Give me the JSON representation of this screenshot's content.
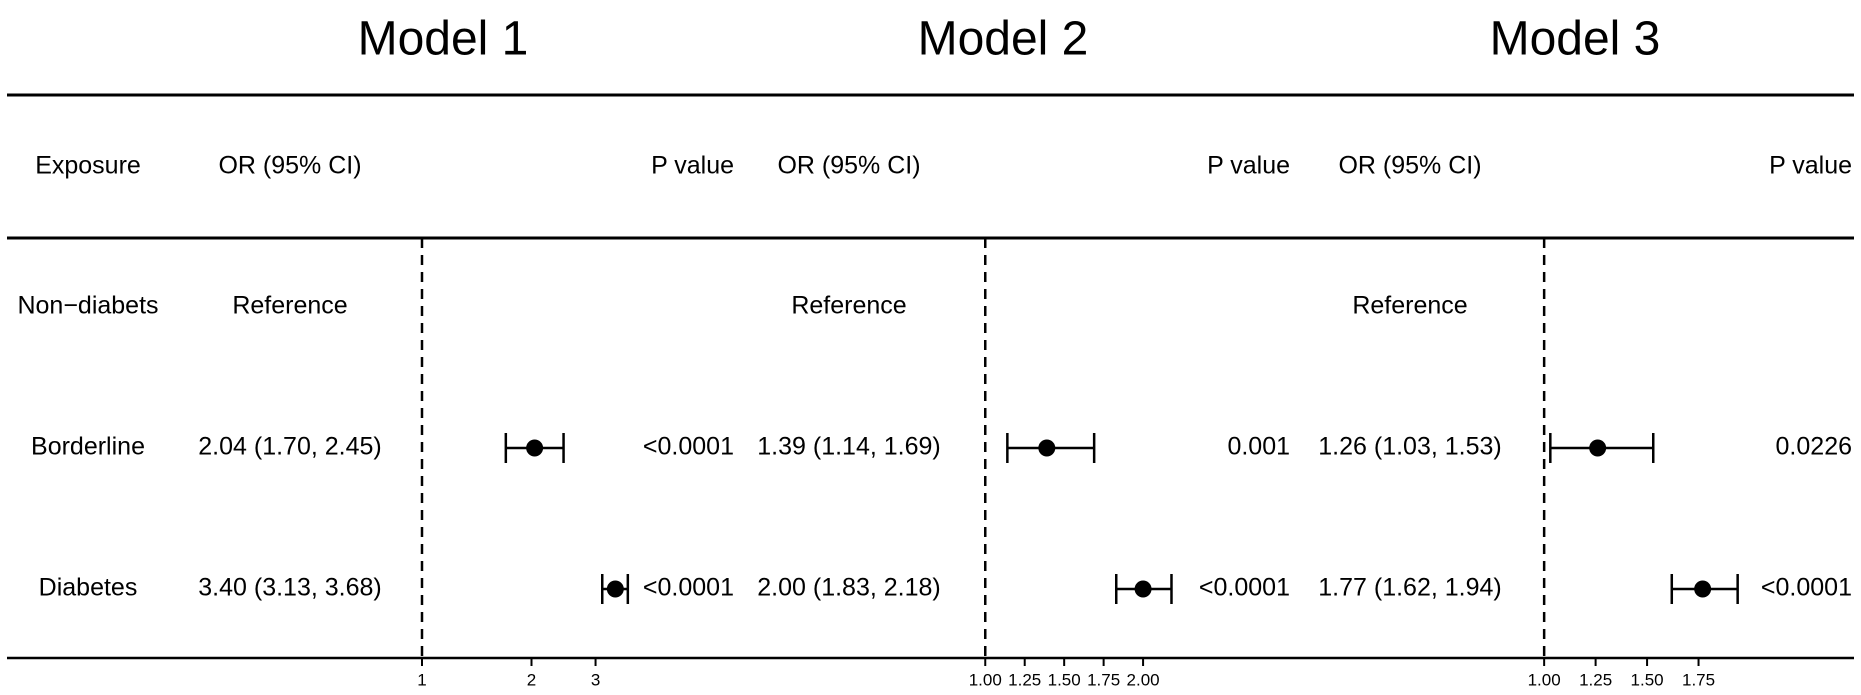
{
  "chart_data": {
    "type": "forest",
    "models": [
      {
        "title": "Model 1",
        "or_header": "OR (95% CI)",
        "p_header": "P value",
        "xscale": "log",
        "xticks": [
          "1",
          "2",
          "3"
        ],
        "rows": [
          {
            "or_text": "Reference",
            "p_text": ""
          },
          {
            "or_text": "2.04 (1.70, 2.45)",
            "p_text": "<0.0001",
            "estimate": 2.04,
            "lower": 1.7,
            "upper": 2.45
          },
          {
            "or_text": "3.40 (3.13, 3.68)",
            "p_text": "<0.0001",
            "estimate": 3.4,
            "lower": 3.13,
            "upper": 3.68
          }
        ]
      },
      {
        "title": "Model 2",
        "or_header": "OR (95% CI)",
        "p_header": "P value",
        "xscale": "linear",
        "xticks": [
          "1.00",
          "1.25",
          "1.50",
          "1.75",
          "2.00"
        ],
        "rows": [
          {
            "or_text": "Reference",
            "p_text": ""
          },
          {
            "or_text": "1.39 (1.14, 1.69)",
            "p_text": "0.001",
            "estimate": 1.39,
            "lower": 1.14,
            "upper": 1.69
          },
          {
            "or_text": "2.00 (1.83, 2.18)",
            "p_text": "<0.0001",
            "estimate": 2.0,
            "lower": 1.83,
            "upper": 2.18
          }
        ]
      },
      {
        "title": "Model 3",
        "or_header": "OR (95% CI)",
        "p_header": "P value",
        "xscale": "linear",
        "xticks": [
          "1.00",
          "1.25",
          "1.50",
          "1.75"
        ],
        "rows": [
          {
            "or_text": "Reference",
            "p_text": ""
          },
          {
            "or_text": "1.26 (1.03, 1.53)",
            "p_text": "0.0226",
            "estimate": 1.26,
            "lower": 1.03,
            "upper": 1.53
          },
          {
            "or_text": "1.77 (1.62, 1.94)",
            "p_text": "<0.0001",
            "estimate": 1.77,
            "lower": 1.62,
            "upper": 1.94
          }
        ]
      }
    ],
    "exposure_header": "Exposure",
    "exposures": [
      "Non−diabets",
      "Borderline",
      "Diabetes"
    ],
    "reference_line": 1
  }
}
